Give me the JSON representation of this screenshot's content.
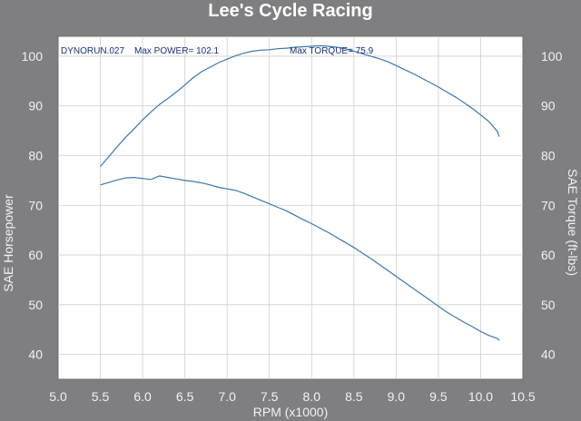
{
  "chart_data": {
    "type": "line",
    "title": "Lee's Cycle Racing",
    "xlabel": "RPM (x1000)",
    "ylabel": "SAE Horsepower",
    "y2label": "SAE Torque (ft-lbs)",
    "xlim": [
      5.0,
      10.5
    ],
    "ylim": [
      35,
      104
    ],
    "xticks": [
      "5.0",
      "5.5",
      "6.0",
      "6.5",
      "7.0",
      "7.5",
      "8.0",
      "8.5",
      "9.0",
      "9.5",
      "10.0",
      "10.5"
    ],
    "yticks": [
      "40",
      "50",
      "60",
      "70",
      "80",
      "90",
      "100"
    ],
    "y2ticks": [
      "40",
      "50",
      "60",
      "70",
      "80",
      "90",
      "100"
    ],
    "grid": true,
    "annotations": {
      "run": "DYNORUN.027",
      "max_power": "Max POWER= 102.1",
      "max_torque": "Max TORQUE= 75.9"
    },
    "series": [
      {
        "color": "#3f76a8",
        "x": [
          5.5,
          5.6,
          5.7,
          5.8,
          5.9,
          6.0,
          6.1,
          6.2,
          6.3,
          6.4,
          6.5,
          6.6,
          6.7,
          6.8,
          6.9,
          7.0,
          7.1,
          7.2,
          7.3,
          7.4,
          7.5,
          7.6,
          7.7,
          7.8,
          7.9,
          8.0,
          8.1,
          8.2,
          8.3,
          8.4,
          8.5,
          8.6,
          8.7,
          8.8,
          8.9,
          9.0,
          9.1,
          9.2,
          9.3,
          9.4,
          9.5,
          9.6,
          9.7,
          9.8,
          9.9,
          10.0,
          10.1,
          10.2,
          10.22
        ],
        "values": [
          77.8,
          79.8,
          81.8,
          83.7,
          85.4,
          87.2,
          88.8,
          90.3,
          91.5,
          92.8,
          94.2,
          95.7,
          96.9,
          97.8,
          98.7,
          99.4,
          100.1,
          100.6,
          101.0,
          101.2,
          101.3,
          101.5,
          101.6,
          101.8,
          101.9,
          102.0,
          102.1,
          102.0,
          101.8,
          101.5,
          101.0,
          100.5,
          100.0,
          99.5,
          98.9,
          98.1,
          97.3,
          96.5,
          95.6,
          94.7,
          93.8,
          92.8,
          91.8,
          90.7,
          89.5,
          88.2,
          86.8,
          84.8,
          83.8
        ]
      },
      {
        "color": "#3f76a8",
        "x": [
          5.5,
          5.6,
          5.7,
          5.8,
          5.9,
          6.0,
          6.1,
          6.2,
          6.3,
          6.4,
          6.5,
          6.6,
          6.7,
          6.8,
          6.9,
          7.0,
          7.1,
          7.2,
          7.3,
          7.4,
          7.5,
          7.6,
          7.7,
          7.8,
          7.9,
          8.0,
          8.1,
          8.2,
          8.3,
          8.4,
          8.5,
          8.6,
          8.7,
          8.8,
          8.9,
          9.0,
          9.1,
          9.2,
          9.3,
          9.4,
          9.5,
          9.6,
          9.7,
          9.8,
          9.9,
          10.0,
          10.1,
          10.2,
          10.22
        ],
        "values": [
          74.1,
          74.6,
          75.1,
          75.5,
          75.6,
          75.4,
          75.2,
          75.9,
          75.6,
          75.3,
          75.0,
          74.8,
          74.5,
          74.1,
          73.6,
          73.3,
          73.0,
          72.4,
          71.7,
          71.0,
          70.3,
          69.6,
          68.9,
          68.0,
          67.1,
          66.3,
          65.4,
          64.5,
          63.5,
          62.5,
          61.5,
          60.4,
          59.3,
          58.1,
          56.9,
          55.7,
          54.5,
          53.3,
          52.1,
          50.9,
          49.7,
          48.5,
          47.5,
          46.5,
          45.6,
          44.6,
          43.8,
          43.2,
          42.8
        ]
      }
    ]
  }
}
